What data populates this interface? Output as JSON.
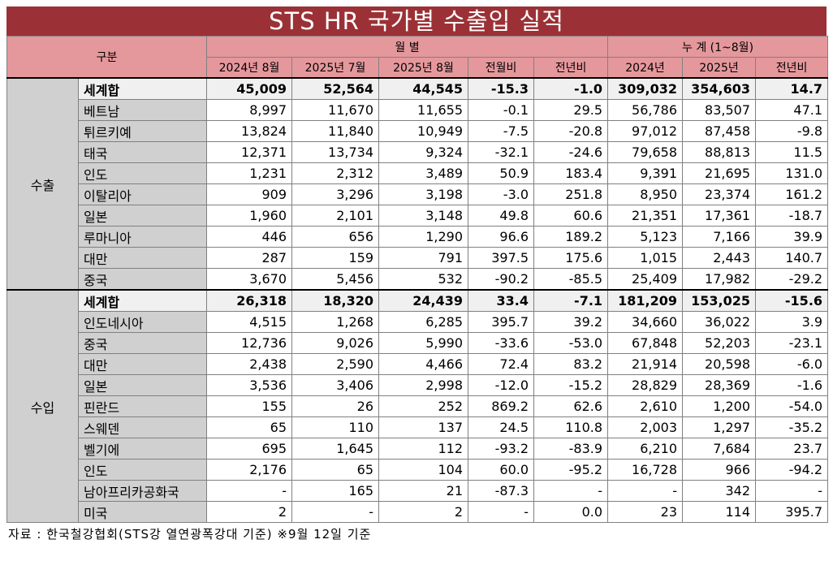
{
  "title": "STS HR 국가별 수출입 실적",
  "header": {
    "group_label": "구분",
    "monthly_label": "월 별",
    "cumulative_label": "누 계 (1~8월)",
    "columns": [
      "2024년 8월",
      "2025년 7월",
      "2025년 8월",
      "전월비",
      "전년비",
      "2024년",
      "2025년",
      "전년비"
    ]
  },
  "sections": [
    {
      "name": "수출",
      "rows": [
        {
          "country": "세계합",
          "values": [
            "45,009",
            "52,564",
            "44,545",
            "-15.3",
            "-1.0",
            "309,032",
            "354,603",
            "14.7"
          ]
        },
        {
          "country": "베트남",
          "values": [
            "8,997",
            "11,670",
            "11,655",
            "-0.1",
            "29.5",
            "56,786",
            "83,507",
            "47.1"
          ]
        },
        {
          "country": "튀르키예",
          "values": [
            "13,824",
            "11,840",
            "10,949",
            "-7.5",
            "-20.8",
            "97,012",
            "87,458",
            "-9.8"
          ]
        },
        {
          "country": "태국",
          "values": [
            "12,371",
            "13,734",
            "9,324",
            "-32.1",
            "-24.6",
            "79,658",
            "88,813",
            "11.5"
          ]
        },
        {
          "country": "인도",
          "values": [
            "1,231",
            "2,312",
            "3,489",
            "50.9",
            "183.4",
            "9,391",
            "21,695",
            "131.0"
          ]
        },
        {
          "country": "이탈리아",
          "values": [
            "909",
            "3,296",
            "3,198",
            "-3.0",
            "251.8",
            "8,950",
            "23,374",
            "161.2"
          ]
        },
        {
          "country": "일본",
          "values": [
            "1,960",
            "2,101",
            "3,148",
            "49.8",
            "60.6",
            "21,351",
            "17,361",
            "-18.7"
          ]
        },
        {
          "country": "루마니아",
          "values": [
            "446",
            "656",
            "1,290",
            "96.6",
            "189.2",
            "5,123",
            "7,166",
            "39.9"
          ]
        },
        {
          "country": "대만",
          "values": [
            "287",
            "159",
            "791",
            "397.5",
            "175.6",
            "1,015",
            "2,443",
            "140.7"
          ]
        },
        {
          "country": "중국",
          "values": [
            "3,670",
            "5,456",
            "532",
            "-90.2",
            "-85.5",
            "25,409",
            "17,982",
            "-29.2"
          ]
        }
      ]
    },
    {
      "name": "수입",
      "rows": [
        {
          "country": "세계합",
          "values": [
            "26,318",
            "18,320",
            "24,439",
            "33.4",
            "-7.1",
            "181,209",
            "153,025",
            "-15.6"
          ]
        },
        {
          "country": "인도네시아",
          "values": [
            "4,515",
            "1,268",
            "6,285",
            "395.7",
            "39.2",
            "34,660",
            "36,022",
            "3.9"
          ]
        },
        {
          "country": "중국",
          "values": [
            "12,736",
            "9,026",
            "5,990",
            "-33.6",
            "-53.0",
            "67,848",
            "52,203",
            "-23.1"
          ]
        },
        {
          "country": "대만",
          "values": [
            "2,438",
            "2,590",
            "4,466",
            "72.4",
            "83.2",
            "21,914",
            "20,598",
            "-6.0"
          ]
        },
        {
          "country": "일본",
          "values": [
            "3,536",
            "3,406",
            "2,998",
            "-12.0",
            "-15.2",
            "28,829",
            "28,369",
            "-1.6"
          ]
        },
        {
          "country": "핀란드",
          "values": [
            "155",
            "26",
            "252",
            "869.2",
            "62.6",
            "2,610",
            "1,200",
            "-54.0"
          ]
        },
        {
          "country": "스웨덴",
          "values": [
            "65",
            "110",
            "137",
            "24.5",
            "110.8",
            "2,003",
            "1,297",
            "-35.2"
          ]
        },
        {
          "country": "벨기에",
          "values": [
            "695",
            "1,645",
            "112",
            "-93.2",
            "-83.9",
            "6,210",
            "7,684",
            "23.7"
          ]
        },
        {
          "country": "인도",
          "values": [
            "2,176",
            "65",
            "104",
            "60.0",
            "-95.2",
            "16,728",
            "966",
            "-94.2"
          ]
        },
        {
          "country": "남아프리카공화국",
          "values": [
            "-",
            "165",
            "21",
            "-87.3",
            "-",
            "-",
            "342",
            "-"
          ]
        },
        {
          "country": "미국",
          "values": [
            "2",
            "-",
            "2",
            "-",
            "0.0",
            "23",
            "114",
            "395.7"
          ]
        }
      ]
    }
  ],
  "footnote": "자료 : 한국철강협회(STS강 열연광폭강대 기준) ※9월 12일 기준",
  "colors": {
    "title_bg": "#9b3136",
    "header_bg": "#e5989c",
    "label_bg": "#d0d0d0",
    "total_bg": "#f0f0f0"
  }
}
